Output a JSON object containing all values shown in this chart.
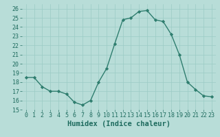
{
  "x": [
    0,
    1,
    2,
    3,
    4,
    5,
    6,
    7,
    8,
    9,
    10,
    11,
    12,
    13,
    14,
    15,
    16,
    17,
    18,
    19,
    20,
    21,
    22,
    23
  ],
  "y": [
    18.5,
    18.5,
    17.5,
    17.0,
    17.0,
    16.7,
    15.8,
    15.5,
    16.0,
    18.0,
    19.5,
    22.2,
    24.8,
    25.0,
    25.7,
    25.8,
    24.8,
    24.6,
    23.2,
    21.0,
    18.0,
    17.2,
    16.5,
    16.4
  ],
  "line_color": "#2e7d6e",
  "marker": "D",
  "marker_size": 2.2,
  "bg_color": "#b8ddd8",
  "grid_color": "#9bcbc4",
  "xlabel": "Humidex (Indice chaleur)",
  "xlim": [
    -0.5,
    23.5
  ],
  "ylim": [
    15,
    26.5
  ],
  "yticks": [
    15,
    16,
    17,
    18,
    19,
    20,
    21,
    22,
    23,
    24,
    25,
    26
  ],
  "xticks": [
    0,
    1,
    2,
    3,
    4,
    5,
    6,
    7,
    8,
    9,
    10,
    11,
    12,
    13,
    14,
    15,
    16,
    17,
    18,
    19,
    20,
    21,
    22,
    23
  ],
  "tick_color": "#1e6b5e",
  "label_fontsize": 6.0,
  "xlabel_fontsize": 7.5,
  "linewidth": 1.0
}
